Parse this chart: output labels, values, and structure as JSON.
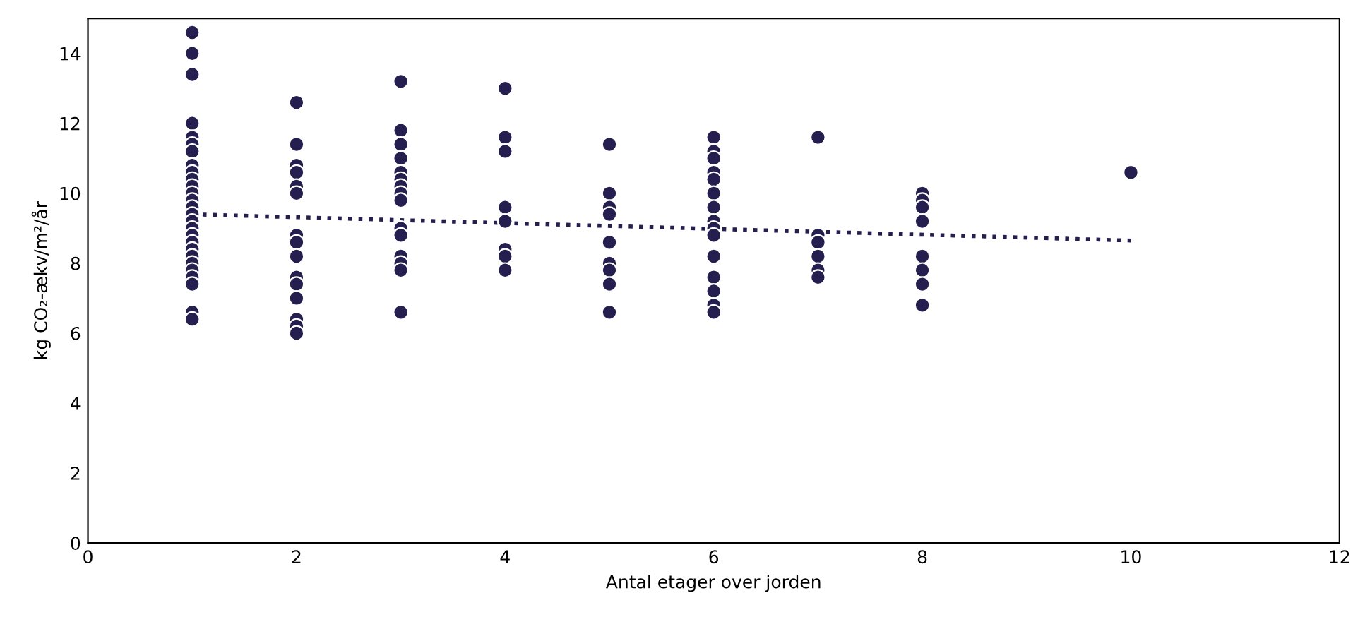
{
  "chart_data": {
    "type": "scatter",
    "xlabel": "Antal etager over jorden",
    "ylabel": "kg CO₂-ækv/m²/år",
    "xlim": [
      0,
      12
    ],
    "xticks": [
      0,
      2,
      4,
      6,
      8,
      10,
      12
    ],
    "ylim": [
      0,
      15
    ],
    "yticks": [
      0,
      2,
      4,
      6,
      8,
      10,
      12,
      14
    ],
    "grid": false,
    "series": [
      {
        "color": "#241f4e",
        "marker": "circle",
        "x": [
          1,
          1,
          1,
          1,
          1,
          1,
          1,
          1,
          1,
          1,
          1,
          1,
          1,
          1,
          1,
          1,
          1,
          1,
          1,
          1,
          1,
          1,
          1,
          1,
          1,
          1,
          1,
          2,
          2,
          2,
          2,
          2,
          2,
          2,
          2,
          2,
          2,
          2,
          2,
          2,
          2,
          2,
          3,
          3,
          3,
          3,
          3,
          3,
          3,
          3,
          3,
          3,
          3,
          3,
          3,
          3,
          3,
          4,
          4,
          4,
          4,
          4,
          4,
          4,
          4,
          5,
          5,
          5,
          5,
          5,
          5,
          5,
          5,
          5,
          6,
          6,
          6,
          6,
          6,
          6,
          6,
          6,
          6,
          6,
          6,
          6,
          6,
          6,
          6,
          7,
          7,
          7,
          7,
          7,
          7,
          8,
          8,
          8,
          8,
          8,
          8,
          8,
          8,
          10
        ],
        "values": [
          14.6,
          14.0,
          13.4,
          12.0,
          11.6,
          11.4,
          11.2,
          10.8,
          10.6,
          10.4,
          10.2,
          10.0,
          9.8,
          9.6,
          9.4,
          9.2,
          9.0,
          8.8,
          8.6,
          8.4,
          8.2,
          8.0,
          7.8,
          7.6,
          7.4,
          6.6,
          6.4,
          12.6,
          11.4,
          10.8,
          10.6,
          10.2,
          10.0,
          8.8,
          8.6,
          8.2,
          7.6,
          7.4,
          7.0,
          6.4,
          6.2,
          6.0,
          13.2,
          11.8,
          11.4,
          11.0,
          10.6,
          10.4,
          10.2,
          10.0,
          9.8,
          9.0,
          8.8,
          8.2,
          8.0,
          7.8,
          6.6,
          13.0,
          11.6,
          11.2,
          9.6,
          9.2,
          8.4,
          8.2,
          7.8,
          11.4,
          10.0,
          9.6,
          9.4,
          8.6,
          8.0,
          7.8,
          7.4,
          6.6,
          11.6,
          11.2,
          11.0,
          10.6,
          10.4,
          10.0,
          9.6,
          9.2,
          9.0,
          8.8,
          8.2,
          7.6,
          7.2,
          6.8,
          6.6,
          11.6,
          8.8,
          8.6,
          8.2,
          7.8,
          7.6,
          10.0,
          9.8,
          9.6,
          9.2,
          8.2,
          7.8,
          7.4,
          6.8,
          10.6
        ]
      },
      {
        "type": "line",
        "color": "#241f4e",
        "line_style": "dotted",
        "x": [
          1,
          10
        ],
        "values": [
          9.4,
          8.65
        ]
      }
    ]
  }
}
